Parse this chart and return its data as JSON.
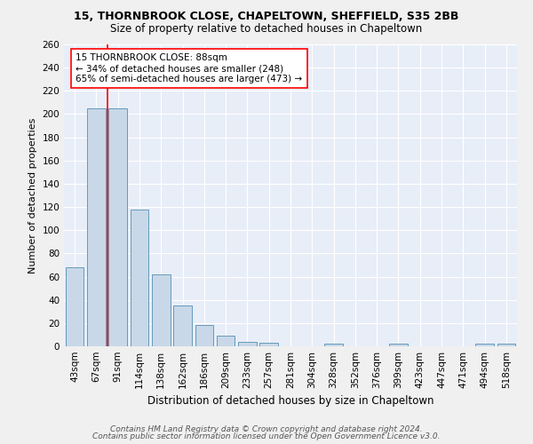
{
  "title1": "15, THORNBROOK CLOSE, CHAPELTOWN, SHEFFIELD, S35 2BB",
  "title2": "Size of property relative to detached houses in Chapeltown",
  "xlabel": "Distribution of detached houses by size in Chapeltown",
  "ylabel": "Number of detached properties",
  "footer1": "Contains HM Land Registry data © Crown copyright and database right 2024.",
  "footer2": "Contains public sector information licensed under the Open Government Licence v3.0.",
  "annotation_line1": "15 THORNBROOK CLOSE: 88sqm",
  "annotation_line2": "← 34% of detached houses are smaller (248)",
  "annotation_line3": "65% of semi-detached houses are larger (473) →",
  "bar_labels": [
    "43sqm",
    "67sqm",
    "91sqm",
    "114sqm",
    "138sqm",
    "162sqm",
    "186sqm",
    "209sqm",
    "233sqm",
    "257sqm",
    "281sqm",
    "304sqm",
    "328sqm",
    "352sqm",
    "376sqm",
    "399sqm",
    "423sqm",
    "447sqm",
    "471sqm",
    "494sqm",
    "518sqm"
  ],
  "bar_values": [
    68,
    205,
    205,
    118,
    62,
    35,
    18,
    9,
    4,
    3,
    0,
    0,
    2,
    0,
    0,
    2,
    0,
    0,
    0,
    2,
    2
  ],
  "bar_color": "#c8d8e8",
  "bar_edge_color": "#6699bb",
  "background_color": "#e8eef8",
  "grid_color": "#ffffff",
  "red_line_index": 2,
  "ylim": [
    0,
    260
  ],
  "yticks": [
    0,
    20,
    40,
    60,
    80,
    100,
    120,
    140,
    160,
    180,
    200,
    220,
    240,
    260
  ],
  "fig_bg": "#f0f0f0",
  "title1_fontsize": 9.0,
  "title2_fontsize": 8.5,
  "ylabel_fontsize": 8.0,
  "xlabel_fontsize": 8.5,
  "tick_fontsize": 7.5,
  "footer_fontsize": 6.5,
  "annot_fontsize": 7.5
}
